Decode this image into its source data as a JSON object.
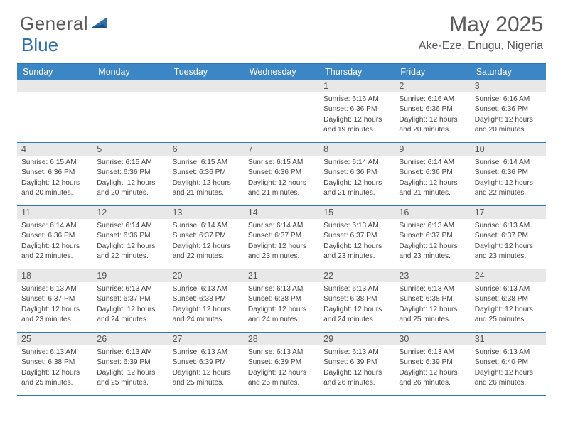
{
  "brand": {
    "name1": "General",
    "name2": "Blue"
  },
  "colors": {
    "headerBar": "#3d86c6",
    "borderBlue": "#2e77b8",
    "numRowBg": "#e8e8e8",
    "textGray": "#5a5a5a",
    "textDark": "#444444"
  },
  "title": {
    "month": "May 2025",
    "location": "Ake-Eze, Enugu, Nigeria"
  },
  "dayNames": [
    "Sunday",
    "Monday",
    "Tuesday",
    "Wednesday",
    "Thursday",
    "Friday",
    "Saturday"
  ],
  "weeks": [
    [
      {
        "n": "",
        "sr": "",
        "ss": "",
        "dl": ""
      },
      {
        "n": "",
        "sr": "",
        "ss": "",
        "dl": ""
      },
      {
        "n": "",
        "sr": "",
        "ss": "",
        "dl": ""
      },
      {
        "n": "",
        "sr": "",
        "ss": "",
        "dl": ""
      },
      {
        "n": "1",
        "sr": "6:16 AM",
        "ss": "6:36 PM",
        "dl": "12 hours and 19 minutes."
      },
      {
        "n": "2",
        "sr": "6:16 AM",
        "ss": "6:36 PM",
        "dl": "12 hours and 20 minutes."
      },
      {
        "n": "3",
        "sr": "6:16 AM",
        "ss": "6:36 PM",
        "dl": "12 hours and 20 minutes."
      }
    ],
    [
      {
        "n": "4",
        "sr": "6:15 AM",
        "ss": "6:36 PM",
        "dl": "12 hours and 20 minutes."
      },
      {
        "n": "5",
        "sr": "6:15 AM",
        "ss": "6:36 PM",
        "dl": "12 hours and 20 minutes."
      },
      {
        "n": "6",
        "sr": "6:15 AM",
        "ss": "6:36 PM",
        "dl": "12 hours and 21 minutes."
      },
      {
        "n": "7",
        "sr": "6:15 AM",
        "ss": "6:36 PM",
        "dl": "12 hours and 21 minutes."
      },
      {
        "n": "8",
        "sr": "6:14 AM",
        "ss": "6:36 PM",
        "dl": "12 hours and 21 minutes."
      },
      {
        "n": "9",
        "sr": "6:14 AM",
        "ss": "6:36 PM",
        "dl": "12 hours and 21 minutes."
      },
      {
        "n": "10",
        "sr": "6:14 AM",
        "ss": "6:36 PM",
        "dl": "12 hours and 22 minutes."
      }
    ],
    [
      {
        "n": "11",
        "sr": "6:14 AM",
        "ss": "6:36 PM",
        "dl": "12 hours and 22 minutes."
      },
      {
        "n": "12",
        "sr": "6:14 AM",
        "ss": "6:36 PM",
        "dl": "12 hours and 22 minutes."
      },
      {
        "n": "13",
        "sr": "6:14 AM",
        "ss": "6:37 PM",
        "dl": "12 hours and 22 minutes."
      },
      {
        "n": "14",
        "sr": "6:14 AM",
        "ss": "6:37 PM",
        "dl": "12 hours and 23 minutes."
      },
      {
        "n": "15",
        "sr": "6:13 AM",
        "ss": "6:37 PM",
        "dl": "12 hours and 23 minutes."
      },
      {
        "n": "16",
        "sr": "6:13 AM",
        "ss": "6:37 PM",
        "dl": "12 hours and 23 minutes."
      },
      {
        "n": "17",
        "sr": "6:13 AM",
        "ss": "6:37 PM",
        "dl": "12 hours and 23 minutes."
      }
    ],
    [
      {
        "n": "18",
        "sr": "6:13 AM",
        "ss": "6:37 PM",
        "dl": "12 hours and 23 minutes."
      },
      {
        "n": "19",
        "sr": "6:13 AM",
        "ss": "6:37 PM",
        "dl": "12 hours and 24 minutes."
      },
      {
        "n": "20",
        "sr": "6:13 AM",
        "ss": "6:38 PM",
        "dl": "12 hours and 24 minutes."
      },
      {
        "n": "21",
        "sr": "6:13 AM",
        "ss": "6:38 PM",
        "dl": "12 hours and 24 minutes."
      },
      {
        "n": "22",
        "sr": "6:13 AM",
        "ss": "6:38 PM",
        "dl": "12 hours and 24 minutes."
      },
      {
        "n": "23",
        "sr": "6:13 AM",
        "ss": "6:38 PM",
        "dl": "12 hours and 25 minutes."
      },
      {
        "n": "24",
        "sr": "6:13 AM",
        "ss": "6:38 PM",
        "dl": "12 hours and 25 minutes."
      }
    ],
    [
      {
        "n": "25",
        "sr": "6:13 AM",
        "ss": "6:38 PM",
        "dl": "12 hours and 25 minutes."
      },
      {
        "n": "26",
        "sr": "6:13 AM",
        "ss": "6:39 PM",
        "dl": "12 hours and 25 minutes."
      },
      {
        "n": "27",
        "sr": "6:13 AM",
        "ss": "6:39 PM",
        "dl": "12 hours and 25 minutes."
      },
      {
        "n": "28",
        "sr": "6:13 AM",
        "ss": "6:39 PM",
        "dl": "12 hours and 25 minutes."
      },
      {
        "n": "29",
        "sr": "6:13 AM",
        "ss": "6:39 PM",
        "dl": "12 hours and 26 minutes."
      },
      {
        "n": "30",
        "sr": "6:13 AM",
        "ss": "6:39 PM",
        "dl": "12 hours and 26 minutes."
      },
      {
        "n": "31",
        "sr": "6:13 AM",
        "ss": "6:40 PM",
        "dl": "12 hours and 26 minutes."
      }
    ]
  ],
  "labels": {
    "sunrise": "Sunrise: ",
    "sunset": "Sunset: ",
    "daylight": "Daylight: "
  }
}
